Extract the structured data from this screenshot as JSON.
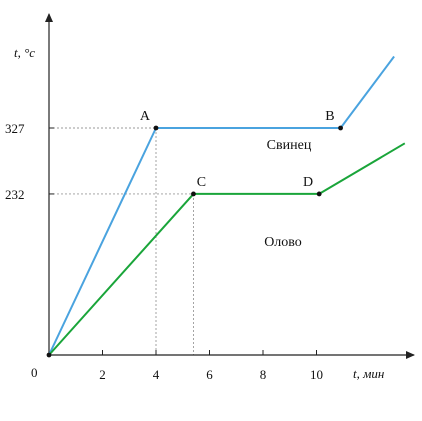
{
  "chart_data": {
    "type": "line",
    "title": "",
    "xlabel": "t, мин",
    "ylabel": "t, °c",
    "origin_label": "0",
    "xlim": [
      0,
      13.8
    ],
    "ylim": [
      0,
      430
    ],
    "x_ticks": [
      2,
      4,
      6,
      8,
      10
    ],
    "y_ticks": [
      232,
      327
    ],
    "grid": false,
    "colors": {
      "svinets": "#4aa3df",
      "olovo": "#1aa53a",
      "axis": "#222222",
      "guide": "#9a9a9a"
    },
    "series": [
      {
        "name": "Свинец",
        "color_key": "svinets",
        "points": [
          [
            0,
            0
          ],
          [
            4,
            327
          ],
          [
            10.9,
            327
          ],
          [
            12.9,
            430
          ]
        ]
      },
      {
        "name": "Олово",
        "color_key": "olovo",
        "points": [
          [
            0,
            0
          ],
          [
            5.4,
            232
          ],
          [
            10.1,
            232
          ],
          [
            13.3,
            305
          ]
        ]
      }
    ],
    "annotations": [
      {
        "label": "A",
        "x": 4,
        "y": 327,
        "anchor": "above-left"
      },
      {
        "label": "B",
        "x": 10.9,
        "y": 327,
        "anchor": "above-left"
      },
      {
        "label": "C",
        "x": 5.4,
        "y": 232,
        "anchor": "above"
      },
      {
        "label": "D",
        "x": 10.1,
        "y": 232,
        "anchor": "above-left"
      }
    ],
    "guides": [
      {
        "x": 4,
        "y": 327
      },
      {
        "x": 5.4,
        "y": 232
      }
    ]
  }
}
